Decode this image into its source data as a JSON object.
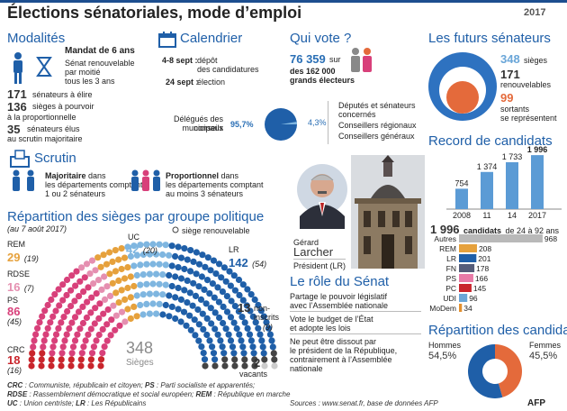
{
  "header": {
    "title": "Élections sénatoriales, mode d’emploi",
    "year": "2017",
    "bottom_logo": "AFP"
  },
  "modalites": {
    "title": "Modalités",
    "mandat": "Mandat de 6 ans",
    "renouvelable_1": "Sénat renouvelable",
    "renouvelable_2": "par moitié",
    "renouvelable_3": "tous les 3 ans",
    "n_elire": "171",
    "n_elire_txt": "sénateurs à élire",
    "n_prop": "136",
    "n_prop_txt1": "sièges à pourvoir",
    "n_prop_txt2": "à la proportionnelle",
    "n_maj": "35",
    "n_maj_txt1": "sénateurs élus",
    "n_maj_txt2": "au scrutin majoritaire"
  },
  "calendrier": {
    "title": "Calendrier",
    "date1": "4-8 sept :",
    "event1a": "dépôt",
    "event1b": "des candidatures",
    "date2": "24 sept :",
    "event2": "élection"
  },
  "qui_vote": {
    "title": "Qui vote ?",
    "n_grands": "76 359",
    "sur": "sur",
    "n_total": "des 162 000",
    "label": "grands électeurs",
    "pct_conseils": "95,7%",
    "label_conseils_1": "Délégués des conseils",
    "label_conseils_2": "municipaux",
    "pct_autres": "4,3%",
    "autres_1a": "Députés et sénateurs",
    "autres_1b": "concernés",
    "autres_2": "Conseillers régionaux",
    "autres_3": "Conseillers généraux"
  },
  "futurs": {
    "title": "Les futurs sénateurs",
    "n_sieges": "348",
    "sieges_label": "sièges",
    "n_renouv": "171",
    "renouv_label": "renouvelables",
    "n_sortants": "99",
    "sortants_1": "sortants",
    "sortants_2": "se représentent"
  },
  "scrutin": {
    "title": "Scrutin",
    "maj_bold": "Majoritaire",
    "maj_1": "dans",
    "maj_2": "les départements comptant",
    "maj_3": "1 ou 2 sénateurs",
    "prop_bold": "Proportionnel",
    "prop_1": "dans",
    "prop_2": "les départements comptant",
    "prop_3": "au moins 3 sénateurs"
  },
  "record": {
    "title": "Record de candidats",
    "chart_data": {
      "type": "bar",
      "categories": [
        "2008",
        "11",
        "14",
        "2017"
      ],
      "values": [
        754,
        1374,
        1733,
        1996
      ],
      "title": "Record de candidats"
    }
  },
  "candidats": {
    "total": "1 996",
    "label": "candidats",
    "range": "de 24 à 92 ans",
    "chart_data": {
      "type": "bar",
      "categories": [
        "Autres",
        "REM",
        "LR",
        "FN",
        "PS",
        "PC",
        "UDI",
        "MoDem"
      ],
      "values": [
        968,
        208,
        201,
        178,
        166,
        145,
        96,
        34
      ],
      "colors": [
        "#b9b9b9",
        "#e6a13c",
        "#1f5fa8",
        "#555d7a",
        "#e87aa7",
        "#c9252c",
        "#6aa6d8",
        "#e3902e"
      ]
    }
  },
  "repartition_sieges": {
    "title": "Répartition des sièges par groupe politique",
    "subtitle": "(au 7 août 2017)",
    "legend_renouv": "siège renouvelable",
    "total": "348",
    "total_label": "Sièges",
    "groups": [
      {
        "name": "REM",
        "n": "29",
        "renouv": "(19)",
        "color": "#e6a13c"
      },
      {
        "name": "RDSE",
        "n": "16",
        "renouv": "(7)",
        "color": "#e58fb0"
      },
      {
        "name": "PS",
        "n": "86",
        "renouv": "(45)",
        "color": "#d8407a"
      },
      {
        "name": "CRC",
        "n": "18",
        "renouv": "(16)",
        "color": "#c9252c"
      },
      {
        "name": "UC",
        "n": "42",
        "renouv": "(20)",
        "color": "#7fb6e0"
      },
      {
        "name": "LR",
        "n": "142",
        "renouv": "(54)",
        "color": "#1f5fa8"
      }
    ],
    "non_inscrits_n": "13",
    "non_inscrits_label1": "non-",
    "non_inscrits_label2": "inscrits",
    "non_inscrits_renouv": "(9)",
    "vacants_n": "2",
    "vacants_label": "vacants"
  },
  "president": {
    "first": "Gérard",
    "last": "Larcher",
    "role": "Président (LR)"
  },
  "role_senat": {
    "title": "Le rôle du Sénat",
    "p1a": "Partage le pouvoir législatif",
    "p1b": "avec l’Assemblée nationale",
    "p2a": "Vote le budget de l’État",
    "p2b": "et adopte les lois",
    "p3a": "Ne peut être dissout par",
    "p3b": "le président de la République,",
    "p3c": "contrairement à l’Assemblée",
    "p3d": "nationale"
  },
  "repartition_candidats": {
    "title": "Répartition des candidats",
    "hommes_label": "Hommes",
    "hommes_pct": "54,5%",
    "femmes_label": "Femmes",
    "femmes_pct": "45,5%",
    "chart_data": {
      "type": "pie",
      "categories": [
        "Hommes",
        "Femmes"
      ],
      "values": [
        54.5,
        45.5
      ],
      "colors": [
        "#1f5fa8",
        "#e46a3b"
      ]
    }
  },
  "footer": {
    "crc": "CRC",
    "crc_txt": ": Communiste, républicain et citoyen;",
    "ps": "PS",
    "ps_txt": ": Parti socialiste et apparentés;",
    "rdse": "RDSE",
    "rdse_txt": ": Rassemblement démocratique et social européen;",
    "rem": "REM",
    "rem_txt": ": République en marche",
    "uc": "UC",
    "uc_txt": ": Union centriste;",
    "lr": "LR",
    "lr_txt": ": Les Républicains",
    "sources": "Sources : www.senat.fr, base de données AFP"
  }
}
